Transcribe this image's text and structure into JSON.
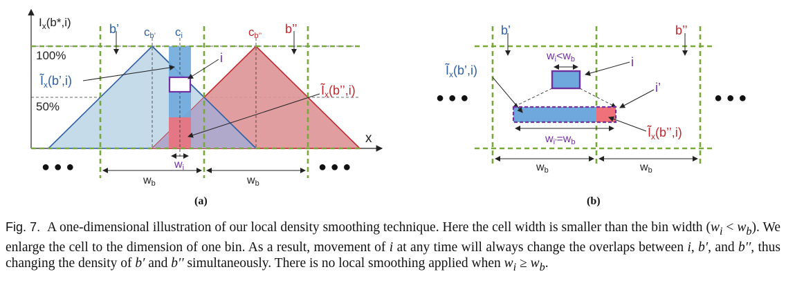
{
  "panel_a": {
    "y_axis_label": "I",
    "y_axis_label_sub": "x",
    "y_axis_label_args": "(b*,i)",
    "x_axis_label": "x",
    "tick_100": "100%",
    "tick_50": "50%",
    "bin_left": "b’",
    "bin_right": "b’’",
    "center_left": "c",
    "center_left_sub": "b’",
    "center_cell": "c",
    "center_cell_sub": "i",
    "center_right": "c",
    "center_right_sub": "b’’",
    "cell_label": "i",
    "overlap_left_main": "Ĩ",
    "overlap_left_sub": "x",
    "overlap_left_args": "(b’,i)",
    "overlap_right_main": "Ĩ",
    "overlap_right_sub": "x",
    "overlap_right_args": "(b’’,i)",
    "cell_width_main": "w",
    "cell_width_sub": "i",
    "bin_width_main": "w",
    "bin_width_sub": "b",
    "dots": "● ● ●",
    "panel_label": "(a)"
  },
  "panel_b": {
    "bin_left": "b’",
    "bin_right": "b’’",
    "cond_wi": "w",
    "cond_wi_sub": "i",
    "cond_lt": "<w",
    "cond_wb_sub": "b",
    "cell_label": "i",
    "enlarged_label": "i’",
    "overlap_left_main": "Ĩ",
    "overlap_left_sub": "x",
    "overlap_left_args": "(b’,i)",
    "overlap_right_main": "Ĩ",
    "overlap_right_sub": "x",
    "overlap_right_args": "(b’’,i)",
    "eq_w": "w",
    "eq_i_sub": "i’",
    "eq_rest": "=w",
    "eq_b_sub": "b",
    "bin_width_main": "w",
    "bin_width_sub": "b",
    "dots": "● ● ●",
    "panel_label": "(b)"
  },
  "colors": {
    "blue_fill": "#c5dbea",
    "blue_stroke": "#2e5fa3",
    "red_fill": "#de9496",
    "red_stroke": "#c0272d",
    "purple_overlap": "#b1a9cc",
    "cell_blue": "#6fa8dc",
    "cell_red": "#f0717a",
    "cell_border": "#7030a0",
    "grid_green": "#77a83a",
    "purple_text": "#7030a0"
  },
  "caption": {
    "fig_number": "Fig. 7.",
    "p1": "A one-dimensional illustration of our local density smoothing technique. Here the cell width is smaller than the bin width (",
    "m1": "w",
    "m1s": "i",
    "p2": " < ",
    "m2": "w",
    "m2s": "b",
    "p3": "). We enlarge the cell to the dimension of one bin. As a result, movement of ",
    "m3": "i",
    "p4": " at any time will always change the overlaps between ",
    "m4": "i",
    "p5": ", ",
    "m5": "b′",
    "p6": ", and ",
    "m6": "b′′",
    "p7": ", thus changing the density of ",
    "m7": "b′",
    "p8": " and ",
    "m8": "b′′",
    "p9": " simultaneously. There is no local smoothing applied when ",
    "m9": "w",
    "m9s": "i",
    "p10": " ≥ ",
    "m10": "w",
    "m10s": "b",
    "p11": "."
  }
}
